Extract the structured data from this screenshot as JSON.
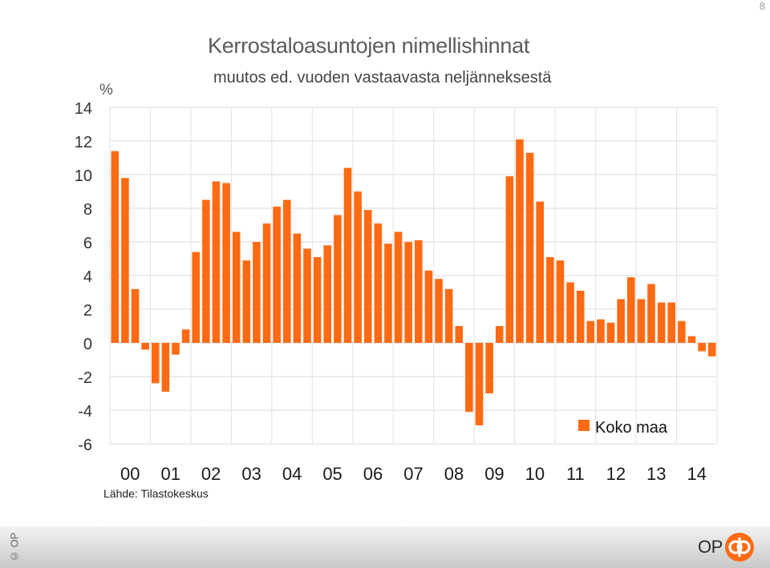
{
  "page": {
    "number": "8"
  },
  "footer": {
    "copyright": "© OP",
    "logo_text": "OP"
  },
  "chart_data": {
    "type": "bar",
    "title": "Kerrostaloasuntojen nimellishinnat",
    "subtitle": "muutos ed. vuoden vastaavasta neljänneksestä",
    "ylabel": "%",
    "source": "Lähde: Tilastokeskus",
    "ylim": [
      -6,
      14
    ],
    "yticks": [
      14,
      12,
      10,
      8,
      6,
      4,
      2,
      0,
      -2,
      -4,
      -6
    ],
    "grid": true,
    "legend_position": "bottom-right",
    "color": "#ff6a13",
    "year_labels": [
      "00",
      "01",
      "02",
      "03",
      "04",
      "05",
      "06",
      "07",
      "08",
      "09",
      "10",
      "11",
      "12",
      "13",
      "14"
    ],
    "series": [
      {
        "name": "Koko maa",
        "values": [
          11.4,
          9.8,
          3.2,
          -0.4,
          -2.4,
          -2.9,
          -0.7,
          0.8,
          5.4,
          8.5,
          9.6,
          9.5,
          6.6,
          4.9,
          6.0,
          7.1,
          8.1,
          8.5,
          6.5,
          5.6,
          5.1,
          5.8,
          7.6,
          10.4,
          9.0,
          7.9,
          7.1,
          5.9,
          6.6,
          6.0,
          6.1,
          4.3,
          3.8,
          3.2,
          1.0,
          -4.1,
          -4.9,
          -3.0,
          1.0,
          9.9,
          12.1,
          11.3,
          8.4,
          5.1,
          4.9,
          3.6,
          3.1,
          1.3,
          1.4,
          1.2,
          2.6,
          3.9,
          2.6,
          3.5,
          2.4,
          2.4,
          1.3,
          0.4,
          -0.5,
          -0.8
        ]
      }
    ]
  }
}
